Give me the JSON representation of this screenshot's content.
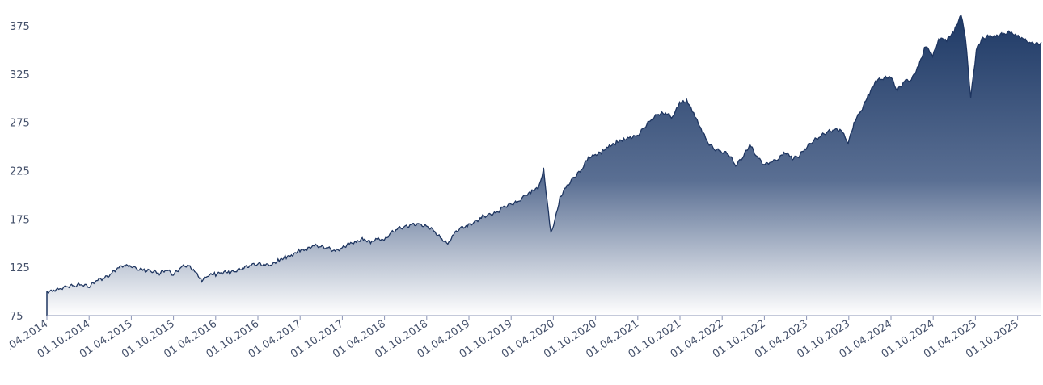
{
  "chart_data": {
    "type": "area",
    "title": "",
    "xlabel": "",
    "ylabel": "",
    "ylim": [
      75,
      390
    ],
    "y_ticks": [
      "375",
      "325",
      "275",
      "225",
      "175",
      "125",
      "75"
    ],
    "y_tick_values": [
      375,
      325,
      275,
      225,
      175,
      125,
      75
    ],
    "x_tick_labels": [
      ".04.2014",
      "01.10.2014",
      "01.04.2015",
      "01.10.2015",
      "01.04.2016",
      "01.10.2016",
      "01.04.2017",
      "01.10.2017",
      "01.04.2018",
      "01.10.2018",
      "01.04.2019",
      "01.10.2019",
      "01.04.2020",
      "01.10.2020",
      "01.04.2021",
      "01.10.2021",
      "01.04.2022",
      "01.10.2022",
      "01.04.2023",
      "01.10.2023",
      "01.04.2024",
      "01.10.2024",
      "01.04.2025",
      "01.10.2025"
    ],
    "x_range": [
      "2014-04-01",
      "2026-01-15"
    ],
    "grid": false,
    "colors": {
      "line": "#1e3560",
      "fill_top": "#1f3a66",
      "fill_bottom": "#ffffff",
      "axis": "#8a93b5",
      "tick_text": "#44506a"
    },
    "series": [
      {
        "dates": [
          "2014-04-01",
          "2014-05-01",
          "2014-06-01",
          "2014-07-01",
          "2014-08-01",
          "2014-09-01",
          "2014-10-01",
          "2014-11-01",
          "2014-12-01",
          "2015-01-01",
          "2015-02-01",
          "2015-03-01",
          "2015-04-01",
          "2015-05-01",
          "2015-06-01",
          "2015-07-01",
          "2015-08-01",
          "2015-09-01",
          "2015-10-01",
          "2015-11-01",
          "2015-12-01",
          "2016-01-01",
          "2016-02-01",
          "2016-03-01",
          "2016-04-01",
          "2016-05-01",
          "2016-06-01",
          "2016-07-01",
          "2016-08-01",
          "2016-09-01",
          "2016-10-01",
          "2016-11-01",
          "2016-12-01",
          "2017-01-01",
          "2017-02-01",
          "2017-03-01",
          "2017-04-01",
          "2017-05-01",
          "2017-06-01",
          "2017-07-01",
          "2017-08-01",
          "2017-09-01",
          "2017-10-01",
          "2017-11-01",
          "2017-12-01",
          "2018-01-01",
          "2018-02-01",
          "2018-03-01",
          "2018-04-01",
          "2018-05-01",
          "2018-06-01",
          "2018-07-01",
          "2018-08-01",
          "2018-09-01",
          "2018-10-01",
          "2018-11-01",
          "2018-12-01",
          "2019-01-01",
          "2019-02-01",
          "2019-03-01",
          "2019-04-01",
          "2019-05-01",
          "2019-06-01",
          "2019-07-01",
          "2019-08-01",
          "2019-09-01",
          "2019-10-01",
          "2019-11-01",
          "2019-12-01",
          "2020-01-01",
          "2020-02-01",
          "2020-02-20",
          "2020-03-23",
          "2020-04-15",
          "2020-05-01",
          "2020-06-01",
          "2020-07-01",
          "2020-08-01",
          "2020-09-01",
          "2020-10-01",
          "2020-11-01",
          "2020-12-01",
          "2021-01-01",
          "2021-02-01",
          "2021-03-01",
          "2021-04-01",
          "2021-05-01",
          "2021-06-01",
          "2021-07-01",
          "2021-08-01",
          "2021-09-01",
          "2021-10-01",
          "2021-11-01",
          "2021-12-01",
          "2022-01-01",
          "2022-02-01",
          "2022-03-01",
          "2022-04-01",
          "2022-05-01",
          "2022-06-01",
          "2022-07-01",
          "2022-08-01",
          "2022-09-01",
          "2022-10-01",
          "2022-11-01",
          "2022-12-01",
          "2023-01-01",
          "2023-02-01",
          "2023-03-01",
          "2023-04-01",
          "2023-05-01",
          "2023-06-01",
          "2023-07-01",
          "2023-08-01",
          "2023-09-01",
          "2023-10-01",
          "2023-11-01",
          "2023-12-01",
          "2024-01-01",
          "2024-02-01",
          "2024-03-01",
          "2024-04-01",
          "2024-05-01",
          "2024-06-01",
          "2024-07-01",
          "2024-08-01",
          "2024-09-01",
          "2024-10-01",
          "2024-11-01",
          "2024-12-01",
          "2025-01-01",
          "2025-02-01",
          "2025-02-20",
          "2025-03-15",
          "2025-04-08",
          "2025-05-01",
          "2025-06-01",
          "2025-07-01",
          "2025-08-01",
          "2025-09-01",
          "2025-10-01",
          "2025-11-01",
          "2025-12-01",
          "2026-01-15"
        ],
        "values": [
          100,
          102,
          104,
          106,
          106,
          107,
          104,
          111,
          113,
          118,
          125,
          128,
          127,
          124,
          122,
          121,
          118,
          122,
          117,
          125,
          128,
          122,
          112,
          118,
          118,
          120,
          119,
          121,
          124,
          127,
          129,
          128,
          129,
          133,
          136,
          138,
          142,
          143,
          147,
          146,
          145,
          142,
          146,
          150,
          152,
          154,
          150,
          154,
          152,
          160,
          165,
          167,
          170,
          170,
          168,
          163,
          155,
          148,
          160,
          165,
          168,
          172,
          178,
          180,
          182,
          188,
          190,
          192,
          198,
          203,
          208,
          226,
          160,
          180,
          198,
          210,
          218,
          225,
          238,
          240,
          245,
          250,
          255,
          258,
          260,
          262,
          270,
          278,
          283,
          284,
          280,
          295,
          298,
          285,
          270,
          255,
          248,
          245,
          242,
          230,
          238,
          252,
          240,
          232,
          235,
          238,
          245,
          238,
          240,
          248,
          255,
          260,
          265,
          268,
          268,
          255,
          278,
          290,
          305,
          318,
          320,
          322,
          308,
          318,
          320,
          334,
          355,
          345,
          362,
          360,
          368,
          386,
          362,
          300,
          350,
          362,
          365,
          365,
          366,
          368,
          364,
          360,
          356,
          358
        ]
      }
    ]
  }
}
